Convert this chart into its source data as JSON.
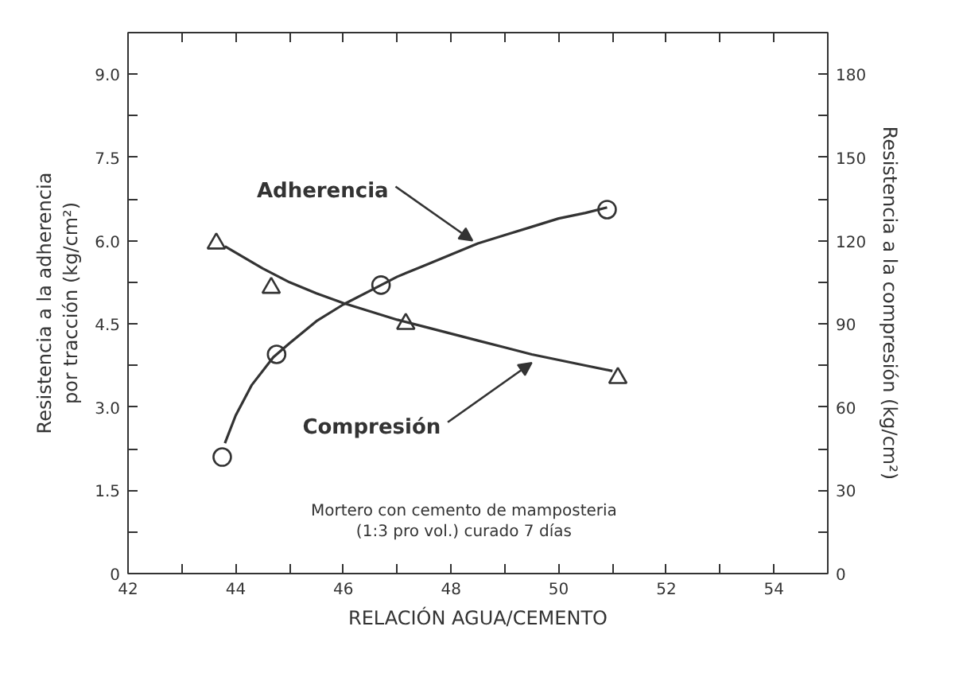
{
  "chart_data": {
    "type": "scatter",
    "xlabel": "RELACIÓN AGUA/CEMENTO",
    "ylabel": "Resistencia a la adherencia\npor tracción (kg/cm²)",
    "y2label": "Resistencia a la compresión (kg/cm²)",
    "xlim": [
      42,
      55
    ],
    "ylim": [
      0,
      9.75
    ],
    "y2lim": [
      0,
      195
    ],
    "xticks": [
      42,
      {
        "value": 43,
        "label": null
      },
      44,
      {
        "value": 45,
        "label": null
      },
      46,
      {
        "value": 47,
        "label": null
      },
      48,
      {
        "value": 49,
        "label": null
      },
      50,
      {
        "value": 51,
        "label": null
      },
      52,
      {
        "value": 53,
        "label": null
      },
      54
    ],
    "yticks": [
      0,
      {
        "value": 0.75,
        "label": null
      },
      1.5,
      {
        "value": 2.25,
        "label": null
      },
      {
        "value": 3,
        "label": "3.0"
      },
      {
        "value": 3.75,
        "label": null
      },
      4.5,
      {
        "value": 5.25,
        "label": null
      },
      {
        "value": 6,
        "label": "6.0"
      },
      {
        "value": 6.75,
        "label": null
      },
      7.5,
      {
        "value": 8.25,
        "label": null
      },
      {
        "value": 9,
        "label": "9.0"
      }
    ],
    "y2ticks": [
      0,
      {
        "value": 15,
        "label": null
      },
      30,
      {
        "value": 45,
        "label": null
      },
      60,
      {
        "value": 75,
        "label": null
      },
      90,
      {
        "value": 105,
        "label": null
      },
      120,
      {
        "value": 135,
        "label": null
      },
      150,
      {
        "value": 165,
        "label": null
      },
      180
    ],
    "grid": false,
    "series": [
      {
        "marker": "circle",
        "color": "#333333",
        "x": [
          43.75,
          44.76,
          46.7,
          50.9
        ],
        "values": [
          2.1,
          3.95,
          5.2,
          6.56
        ]
      },
      {
        "type": "line",
        "line_style": "solid",
        "color": "#333333",
        "x": [
          43.8,
          44.0,
          44.3,
          44.7,
          45.0,
          45.5,
          46.0,
          46.5,
          47.0,
          47.5,
          48.0,
          48.5,
          49.0,
          49.5,
          50.0,
          50.5,
          50.9
        ],
        "values": [
          2.35,
          2.85,
          3.4,
          3.9,
          4.15,
          4.55,
          4.85,
          5.1,
          5.35,
          5.55,
          5.75,
          5.95,
          6.1,
          6.25,
          6.4,
          6.5,
          6.6
        ]
      },
      {
        "marker": "triangle",
        "axis": "y2",
        "color": "#333333",
        "x": [
          43.64,
          44.66,
          47.16,
          51.1
        ],
        "values": [
          119,
          103,
          90,
          70.5
        ]
      },
      {
        "type": "line",
        "line_style": "solid",
        "axis": "y2",
        "color": "#333333",
        "x": [
          43.8,
          44.5,
          45.0,
          45.5,
          46.0,
          46.5,
          47.0,
          47.5,
          48.0,
          48.5,
          49.0,
          49.5,
          50.0,
          50.5,
          51.0
        ],
        "values": [
          118,
          110,
          105,
          101,
          97.5,
          94.5,
          91.5,
          89,
          86.5,
          84,
          81.5,
          79,
          77,
          75,
          73
        ]
      }
    ],
    "annotations": [
      {
        "text": "Adherencia",
        "x": 48.4,
        "y": 6.0
      },
      {
        "text": "Compresión",
        "x": 49.5,
        "y": 3.8
      },
      "Mortero con cemento de mamposteria\n(1:3 pro vol.) curado 7 días"
    ]
  }
}
